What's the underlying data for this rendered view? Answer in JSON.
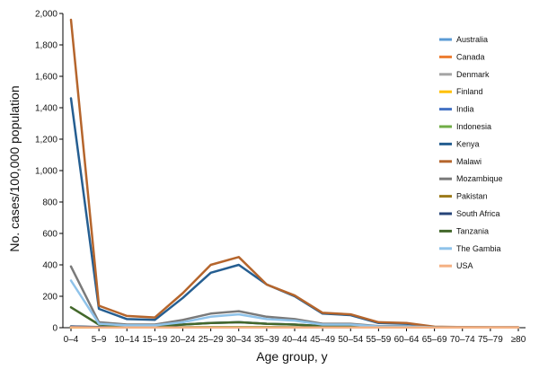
{
  "chart_data": {
    "type": "line",
    "title": "",
    "xlabel": "Age group, y",
    "ylabel": "No. cases/100,000 population",
    "ylim": [
      0,
      2000
    ],
    "yticks": [
      0,
      200,
      400,
      600,
      800,
      1000,
      1200,
      1400,
      1600,
      1800,
      2000
    ],
    "ytick_labels": [
      "0",
      "200",
      "400",
      "600",
      "800",
      "1,000",
      "1,200",
      "1,400",
      "1,600",
      "1,800",
      "2,000"
    ],
    "grid": false,
    "legend_position": "right",
    "categories": [
      "0–4",
      "5–9",
      "10–14",
      "15–19",
      "20–24",
      "25–29",
      "30–34",
      "35–39",
      "40–44",
      "45–49",
      "50–54",
      "55–59",
      "60–64",
      "65–69",
      "70–74",
      "75–79",
      "≥80"
    ],
    "series": [
      {
        "name": "Australia",
        "color": "#5b9bd5",
        "values": [
          2,
          1,
          1,
          1,
          1,
          1,
          1,
          1,
          1,
          1,
          1,
          1,
          1,
          1,
          1,
          1,
          1
        ]
      },
      {
        "name": "Canada",
        "color": "#ed7d31",
        "values": [
          3,
          1,
          1,
          1,
          1,
          1,
          1,
          1,
          1,
          1,
          1,
          1,
          1,
          1,
          1,
          1,
          1
        ]
      },
      {
        "name": "Denmark",
        "color": "#a5a5a5",
        "values": [
          5,
          2,
          1,
          1,
          1,
          1,
          1,
          1,
          1,
          1,
          1,
          1,
          1,
          1,
          1,
          1,
          1
        ]
      },
      {
        "name": "Finland",
        "color": "#ffc000",
        "values": [
          2,
          1,
          1,
          1,
          1,
          1,
          1,
          1,
          1,
          1,
          1,
          1,
          1,
          1,
          1,
          1,
          1
        ]
      },
      {
        "name": "India",
        "color": "#4472c4",
        "values": [
          6,
          3,
          2,
          2,
          2,
          2,
          2,
          2,
          2,
          2,
          2,
          2,
          2,
          1,
          1,
          1,
          1
        ]
      },
      {
        "name": "Indonesia",
        "color": "#70ad47",
        "values": [
          8,
          3,
          2,
          2,
          3,
          4,
          4,
          4,
          3,
          3,
          3,
          2,
          2,
          1,
          1,
          1,
          1
        ]
      },
      {
        "name": "Kenya",
        "color": "#255e91",
        "values": [
          1460,
          120,
          55,
          50,
          190,
          350,
          400,
          275,
          200,
          90,
          80,
          30,
          25,
          5,
          3,
          2,
          2
        ]
      },
      {
        "name": "Malawi",
        "color": "#b5652c",
        "values": [
          1960,
          140,
          75,
          65,
          220,
          400,
          450,
          275,
          205,
          95,
          85,
          35,
          30,
          6,
          4,
          3,
          3
        ]
      },
      {
        "name": "Mozambique",
        "color": "#7a7a7a",
        "values": [
          390,
          35,
          20,
          20,
          50,
          90,
          105,
          70,
          55,
          25,
          25,
          10,
          10,
          3,
          2,
          2,
          2
        ]
      },
      {
        "name": "Pakistan",
        "color": "#9c7a1a",
        "values": [
          5,
          2,
          1,
          1,
          2,
          2,
          2,
          2,
          2,
          2,
          2,
          1,
          1,
          1,
          1,
          1,
          1
        ]
      },
      {
        "name": "South Africa",
        "color": "#264478",
        "values": [
          8,
          4,
          3,
          3,
          20,
          30,
          35,
          25,
          20,
          10,
          10,
          5,
          5,
          2,
          1,
          1,
          1
        ]
      },
      {
        "name": "Tanzania",
        "color": "#43682b",
        "values": [
          130,
          20,
          10,
          10,
          20,
          30,
          35,
          25,
          20,
          10,
          10,
          5,
          5,
          2,
          1,
          1,
          1
        ]
      },
      {
        "name": "The Gambia",
        "color": "#8fc3ea",
        "values": [
          300,
          25,
          15,
          15,
          35,
          70,
          85,
          55,
          45,
          20,
          20,
          8,
          8,
          2,
          2,
          1,
          1
        ]
      },
      {
        "name": "USA",
        "color": "#f4b183",
        "values": [
          3,
          1,
          1,
          1,
          1,
          1,
          1,
          1,
          1,
          1,
          1,
          1,
          1,
          1,
          1,
          1,
          1
        ]
      }
    ]
  }
}
